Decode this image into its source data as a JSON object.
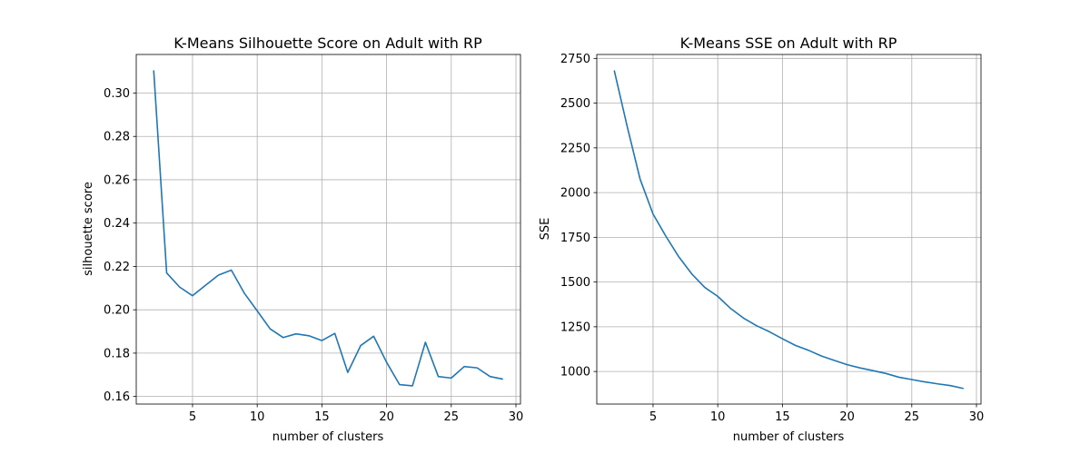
{
  "chart_data": [
    {
      "type": "line",
      "title": "K-Means Silhouette Score on Adult with RP",
      "xlabel": "number of clusters",
      "ylabel": "silhouette score",
      "grid": true,
      "xlim": [
        0.65,
        30.35
      ],
      "ylim": [
        0.1565,
        0.3178
      ],
      "xticks": [
        5,
        10,
        15,
        20,
        25,
        30
      ],
      "yticks": [
        0.16,
        0.18,
        0.2,
        0.22,
        0.24,
        0.26,
        0.28,
        0.3
      ],
      "yticklabels": [
        "0.16",
        "0.18",
        "0.20",
        "0.22",
        "0.24",
        "0.26",
        "0.28",
        "0.30"
      ],
      "line_color": "#1f77b4",
      "x": [
        2,
        3,
        4,
        5,
        6,
        7,
        8,
        9,
        10,
        11,
        12,
        13,
        14,
        15,
        16,
        17,
        18,
        19,
        20,
        21,
        22,
        23,
        24,
        25,
        26,
        27,
        28,
        29
      ],
      "y": [
        0.3105,
        0.217,
        0.2105,
        0.2065,
        0.2113,
        0.216,
        0.2183,
        0.2077,
        0.1995,
        0.1912,
        0.1872,
        0.1889,
        0.188,
        0.1858,
        0.1891,
        0.1711,
        0.1835,
        0.1878,
        0.1758,
        0.1655,
        0.1649,
        0.185,
        0.1692,
        0.1685,
        0.1738,
        0.1732,
        0.1692,
        0.168
      ]
    },
    {
      "type": "line",
      "title": "K-Means SSE on Adult with RP",
      "xlabel": "number of clusters",
      "ylabel": "SSE",
      "grid": true,
      "xlim": [
        0.65,
        30.35
      ],
      "ylim": [
        818,
        2772
      ],
      "xticks": [
        5,
        10,
        15,
        20,
        25,
        30
      ],
      "yticks": [
        1000,
        1250,
        1500,
        1750,
        2000,
        2250,
        2500,
        2750
      ],
      "yticklabels": [
        "1000",
        "1250",
        "1500",
        "1750",
        "2000",
        "2250",
        "2500",
        "2750"
      ],
      "line_color": "#1f77b4",
      "x": [
        2,
        3,
        4,
        5,
        6,
        7,
        8,
        9,
        10,
        11,
        12,
        13,
        14,
        15,
        16,
        17,
        18,
        19,
        20,
        21,
        22,
        23,
        24,
        25,
        26,
        27,
        28,
        29
      ],
      "y": [
        2683,
        2370,
        2075,
        1880,
        1755,
        1640,
        1545,
        1470,
        1420,
        1352,
        1298,
        1256,
        1222,
        1183,
        1146,
        1119,
        1087,
        1062,
        1038,
        1020,
        1005,
        989,
        968,
        955,
        942,
        931,
        921,
        905
      ]
    }
  ]
}
